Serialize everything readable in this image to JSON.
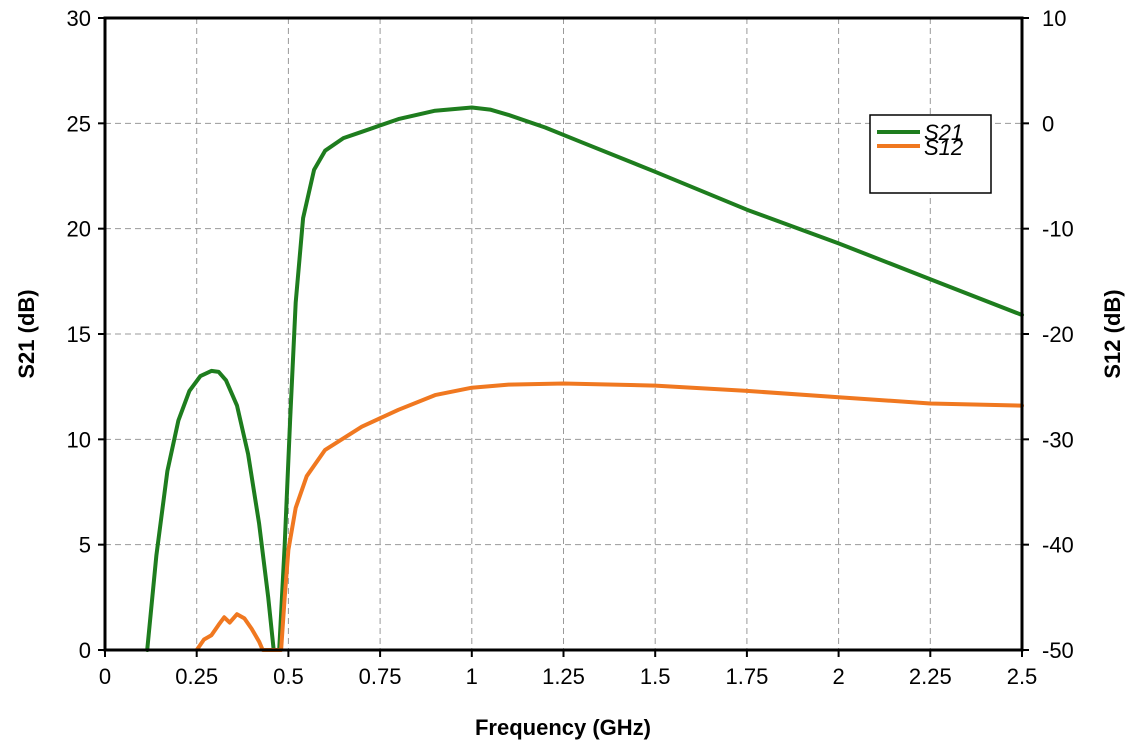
{
  "chart_data": {
    "type": "line",
    "title": "",
    "xlabel": "Frequency (GHz)",
    "ylabel": "S21 (dB)",
    "y2label": "S12 (dB)",
    "xlim": [
      0,
      2.5
    ],
    "ylim": [
      0,
      30
    ],
    "y2lim": [
      -50,
      10
    ],
    "xticks": [
      0,
      0.25,
      0.5,
      0.75,
      1,
      1.25,
      1.5,
      1.75,
      2,
      2.25,
      2.5
    ],
    "xtick_labels": [
      "0",
      "0.25",
      "0.5",
      "0.75",
      "1",
      "1.25",
      "1.5",
      "1.75",
      "2",
      "2.25",
      "2.5"
    ],
    "yticks": [
      0,
      5,
      10,
      15,
      20,
      25,
      30
    ],
    "ytick_labels": [
      "0",
      "5",
      "10",
      "15",
      "20",
      "25",
      "30"
    ],
    "y2ticks": [
      -50,
      -40,
      -30,
      -20,
      -10,
      0,
      10
    ],
    "y2tick_labels": [
      "-50",
      "-40",
      "-30",
      "-20",
      "-10",
      "0",
      "10"
    ],
    "grid": true,
    "legend_position": "top-right",
    "series": [
      {
        "name": "S21",
        "axis": "left",
        "color": "#1e7d1e",
        "points": [
          [
            0.115,
            0
          ],
          [
            0.14,
            4.5
          ],
          [
            0.17,
            8.5
          ],
          [
            0.2,
            10.9
          ],
          [
            0.23,
            12.3
          ],
          [
            0.26,
            13.0
          ],
          [
            0.29,
            13.25
          ],
          [
            0.31,
            13.2
          ],
          [
            0.33,
            12.8
          ],
          [
            0.36,
            11.6
          ],
          [
            0.39,
            9.3
          ],
          [
            0.42,
            6.0
          ],
          [
            0.445,
            2.5
          ],
          [
            0.46,
            0
          ],
          [
            0.475,
            0
          ],
          [
            0.49,
            5.0
          ],
          [
            0.505,
            11.0
          ],
          [
            0.52,
            16.5
          ],
          [
            0.54,
            20.5
          ],
          [
            0.57,
            22.8
          ],
          [
            0.6,
            23.7
          ],
          [
            0.65,
            24.3
          ],
          [
            0.7,
            24.6
          ],
          [
            0.8,
            25.2
          ],
          [
            0.9,
            25.6
          ],
          [
            1.0,
            25.75
          ],
          [
            1.05,
            25.65
          ],
          [
            1.1,
            25.4
          ],
          [
            1.2,
            24.8
          ],
          [
            1.3,
            24.1
          ],
          [
            1.5,
            22.7
          ],
          [
            1.75,
            20.9
          ],
          [
            2.0,
            19.3
          ],
          [
            2.25,
            17.6
          ],
          [
            2.5,
            15.9
          ]
        ]
      },
      {
        "name": "S12",
        "axis": "right",
        "color": "#f07820",
        "points": [
          [
            0.25,
            -50
          ],
          [
            0.27,
            -49.0
          ],
          [
            0.29,
            -48.6
          ],
          [
            0.31,
            -47.6
          ],
          [
            0.325,
            -46.9
          ],
          [
            0.34,
            -47.4
          ],
          [
            0.36,
            -46.6
          ],
          [
            0.38,
            -47.0
          ],
          [
            0.4,
            -48.0
          ],
          [
            0.42,
            -49.2
          ],
          [
            0.43,
            -50
          ],
          [
            0.48,
            -50
          ],
          [
            0.49,
            -45.0
          ],
          [
            0.5,
            -40.5
          ],
          [
            0.52,
            -36.5
          ],
          [
            0.55,
            -33.5
          ],
          [
            0.6,
            -31.0
          ],
          [
            0.7,
            -28.8
          ],
          [
            0.8,
            -27.2
          ],
          [
            0.9,
            -25.8
          ],
          [
            1.0,
            -25.1
          ],
          [
            1.1,
            -24.8
          ],
          [
            1.25,
            -24.7
          ],
          [
            1.5,
            -24.9
          ],
          [
            1.75,
            -25.4
          ],
          [
            2.0,
            -26.0
          ],
          [
            2.25,
            -26.6
          ],
          [
            2.5,
            -26.8
          ]
        ]
      }
    ]
  }
}
